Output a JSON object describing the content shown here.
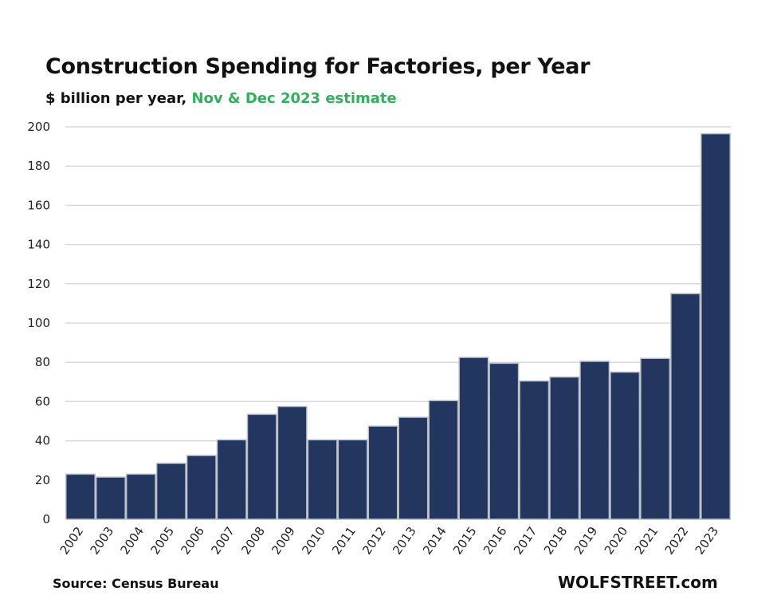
{
  "chart_data": {
    "type": "bar",
    "title": "Construction  Spending for Factories, per Year",
    "subtitle_prefix": "$ billion per year, ",
    "subtitle_highlight": "Nov & Dec 2023 estimate",
    "xlabel": "",
    "ylabel": "$ billion per year",
    "ylim": [
      0,
      200
    ],
    "yticks": [
      0,
      20,
      40,
      60,
      80,
      100,
      120,
      140,
      160,
      180,
      200
    ],
    "grid": true,
    "categories": [
      "2002",
      "2003",
      "2004",
      "2005",
      "2006",
      "2007",
      "2008",
      "2009",
      "2010",
      "2011",
      "2012",
      "2013",
      "2014",
      "2015",
      "2016",
      "2017",
      "2018",
      "2019",
      "2020",
      "2021",
      "2022",
      "2023"
    ],
    "values": [
      23,
      21.5,
      23,
      28.5,
      32.5,
      40.5,
      53.5,
      57.5,
      40.5,
      40.5,
      47.5,
      52,
      60.5,
      82.5,
      79.5,
      70.5,
      72.5,
      80.5,
      75,
      82,
      115,
      196.5
    ],
    "colors": {
      "bar": "#22365f",
      "bar_border": "#b9c0cc",
      "grid": "#d9d9d9",
      "highlight": "#2fb15c"
    }
  },
  "footer": {
    "source": "Source: Census Bureau",
    "brand": "WOLFSTREET.com"
  }
}
